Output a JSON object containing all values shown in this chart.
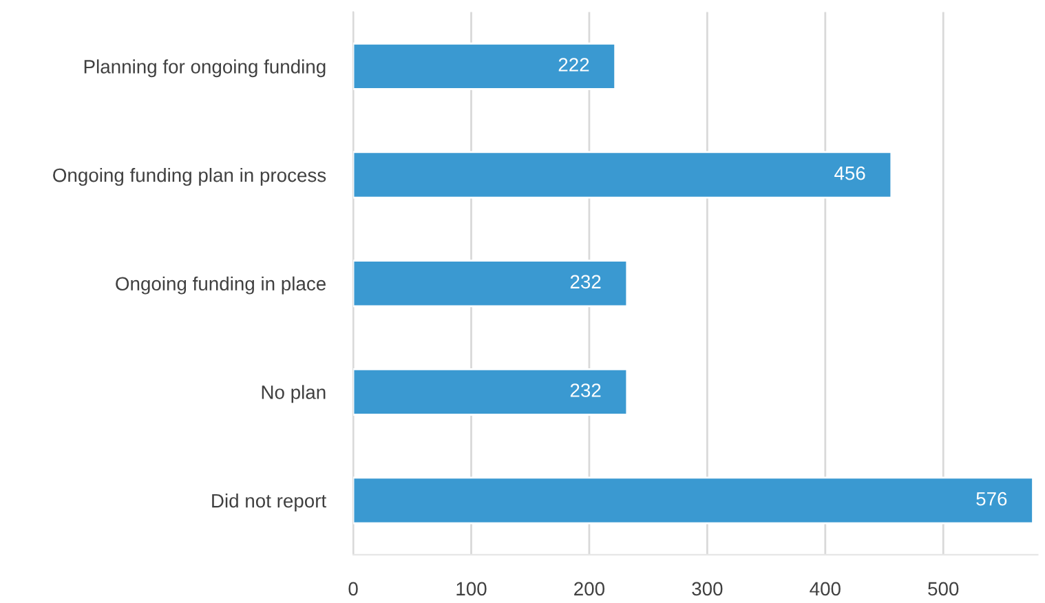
{
  "chart_data": {
    "type": "bar",
    "orientation": "horizontal",
    "categories": [
      "Planning for ongoing funding",
      "Ongoing funding plan in process",
      "Ongoing funding in place",
      "No plan",
      "Did not report"
    ],
    "values": [
      222,
      456,
      232,
      232,
      576
    ],
    "color": "#3a99d1",
    "xlim": [
      0,
      580
    ],
    "xticks": [
      0,
      100,
      200,
      300,
      400,
      500
    ],
    "grid": "x",
    "data_labels": true
  }
}
